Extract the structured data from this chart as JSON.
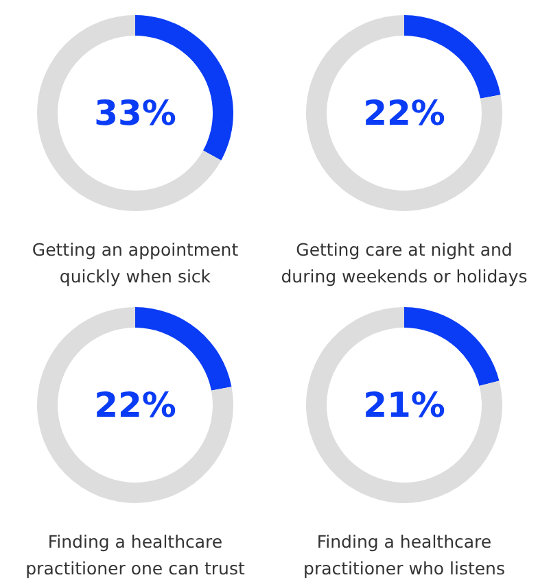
{
  "chart_data": [
    {
      "type": "donut",
      "title": "Getting an appointment\nquickly when sick",
      "categories": [
        null,
        null
      ],
      "values": [
        33,
        67
      ],
      "colors": [
        "#0a3cf5",
        "#dddddd"
      ],
      "annotations": [
        "33%"
      ]
    },
    {
      "type": "donut",
      "title": "Getting care at night and\nduring weekends or holidays",
      "categories": [
        null,
        null
      ],
      "values": [
        22,
        78
      ],
      "colors": [
        "#0a3cf5",
        "#dddddd"
      ],
      "annotations": [
        "22%"
      ]
    },
    {
      "type": "donut",
      "title": "Finding a healthcare\npractitioner one can trust",
      "categories": [
        null,
        null
      ],
      "values": [
        22,
        78
      ],
      "colors": [
        "#0a3cf5",
        "#dddddd"
      ],
      "annotations": [
        "22%"
      ]
    },
    {
      "type": "donut",
      "title": "Finding a healthcare\npractitioner who listens",
      "categories": [
        null,
        null
      ],
      "values": [
        21,
        79
      ],
      "colors": [
        "#0a3cf5",
        "#dddddd"
      ],
      "annotations": [
        "21%"
      ]
    }
  ]
}
